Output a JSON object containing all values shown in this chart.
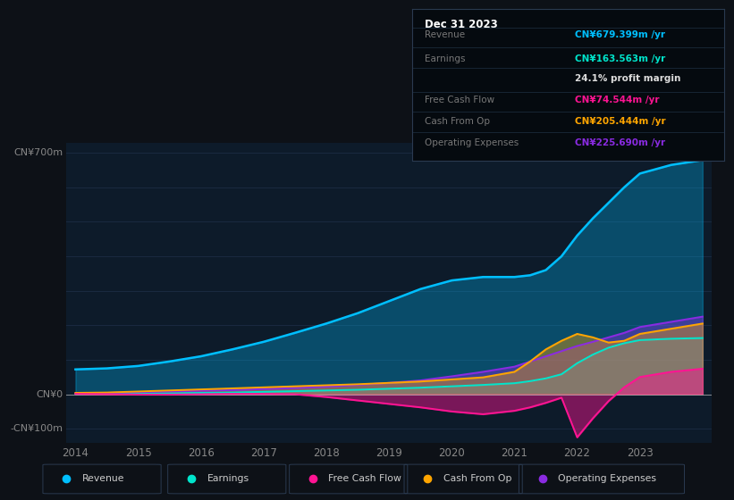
{
  "bg_color": "#0d1117",
  "plot_bg_color": "#0d1b2a",
  "colors": {
    "revenue": "#00bfff",
    "earnings": "#00e5cc",
    "free_cash_flow": "#ff1493",
    "cash_from_op": "#ffa500",
    "op_expenses": "#8a2be2"
  },
  "years": [
    2014,
    2014.5,
    2015,
    2015.5,
    2016,
    2016.5,
    2017,
    2017.5,
    2018,
    2018.5,
    2019,
    2019.5,
    2020,
    2020.5,
    2021,
    2021.25,
    2021.5,
    2021.75,
    2022,
    2022.25,
    2022.5,
    2022.75,
    2023,
    2023.5,
    2024.0
  ],
  "revenue": [
    72,
    75,
    82,
    95,
    110,
    130,
    152,
    178,
    205,
    235,
    270,
    305,
    330,
    340,
    340,
    345,
    360,
    400,
    460,
    510,
    555,
    600,
    640,
    665,
    679
  ],
  "earnings": [
    1,
    1.5,
    2,
    3,
    4,
    5,
    7,
    9,
    11,
    13,
    16,
    19,
    23,
    27,
    32,
    38,
    46,
    58,
    90,
    115,
    135,
    148,
    157,
    161,
    163
  ],
  "free_cash_flow": [
    1,
    0,
    -1,
    -1,
    0,
    1,
    1,
    0,
    -8,
    -18,
    -28,
    -38,
    -50,
    -58,
    -48,
    -38,
    -25,
    -10,
    -125,
    -70,
    -20,
    20,
    50,
    65,
    74
  ],
  "cash_from_op": [
    4,
    5,
    8,
    11,
    14,
    17,
    20,
    23,
    26,
    29,
    33,
    37,
    43,
    49,
    65,
    95,
    130,
    155,
    175,
    165,
    150,
    155,
    175,
    190,
    205
  ],
  "op_expenses": [
    3,
    4,
    6,
    8,
    10,
    12,
    15,
    18,
    22,
    27,
    33,
    40,
    52,
    65,
    80,
    95,
    110,
    125,
    140,
    152,
    165,
    178,
    195,
    210,
    225
  ],
  "legend": [
    {
      "label": "Revenue",
      "color": "#00bfff"
    },
    {
      "label": "Earnings",
      "color": "#00e5cc"
    },
    {
      "label": "Free Cash Flow",
      "color": "#ff1493"
    },
    {
      "label": "Cash From Op",
      "color": "#ffa500"
    },
    {
      "label": "Operating Expenses",
      "color": "#8a2be2"
    }
  ],
  "xlim": [
    2013.85,
    2024.15
  ],
  "ylim": [
    -140,
    730
  ],
  "xticks": [
    2014,
    2015,
    2016,
    2017,
    2018,
    2019,
    2020,
    2021,
    2022,
    2023
  ],
  "grid_color": "#1a2a40",
  "text_color": "#888888",
  "zero_line_color": "#aaaaaa",
  "info_box": {
    "title": "Dec 31 2023",
    "rows": [
      {
        "label": "Revenue",
        "value": "CN¥679.399m /yr",
        "color": "#00bfff"
      },
      {
        "label": "Earnings",
        "value": "CN¥163.563m /yr",
        "color": "#00e5cc"
      },
      {
        "label": "",
        "value": "24.1% profit margin",
        "color": "#dddddd"
      },
      {
        "label": "Free Cash Flow",
        "value": "CN¥74.544m /yr",
        "color": "#ff1493"
      },
      {
        "label": "Cash From Op",
        "value": "CN¥205.444m /yr",
        "color": "#ffa500"
      },
      {
        "label": "Operating Expenses",
        "value": "CN¥225.690m /yr",
        "color": "#8a2be2"
      }
    ]
  }
}
